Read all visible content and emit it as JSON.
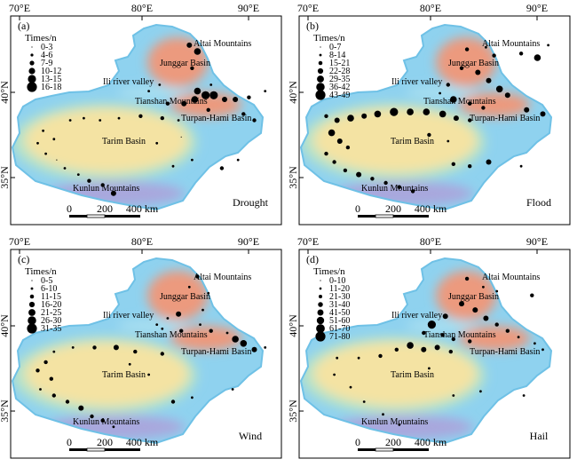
{
  "panels": [
    {
      "id": "a",
      "letter": "(a)",
      "hazard": "Drought",
      "legend_title": "Times/n",
      "legend": [
        "0-3",
        "4-6",
        "7-9",
        "10-12",
        "13-15",
        "16-18"
      ],
      "top_ticks": [
        "70°E",
        "80°E",
        "90°E"
      ],
      "left_ticks": [
        "40°N",
        "35°N"
      ],
      "places": [
        "Altai Mountains",
        "Junggar Basin",
        "Ili river valley",
        "Tianshan Mountains",
        "Turpan-Hami Basin",
        "Tarim Basin",
        "Kunlun Mountains"
      ],
      "scale": {
        "zero": "0",
        "mid": "200",
        "end": "400 km"
      },
      "points": [
        [
          0.66,
          0.14,
          4
        ],
        [
          0.69,
          0.17,
          5
        ],
        [
          0.67,
          0.25,
          3
        ],
        [
          0.74,
          0.33,
          2
        ],
        [
          0.69,
          0.36,
          5
        ],
        [
          0.72,
          0.38,
          6
        ],
        [
          0.75,
          0.38,
          6
        ],
        [
          0.79,
          0.4,
          4
        ],
        [
          0.83,
          0.4,
          4
        ],
        [
          0.88,
          0.39,
          3
        ],
        [
          0.94,
          0.36,
          2
        ],
        [
          0.55,
          0.33,
          2
        ],
        [
          0.51,
          0.36,
          2
        ],
        [
          0.58,
          0.42,
          3
        ],
        [
          0.64,
          0.42,
          4
        ],
        [
          0.68,
          0.4,
          5
        ],
        [
          0.73,
          0.45,
          3
        ],
        [
          0.86,
          0.47,
          3
        ],
        [
          0.9,
          0.5,
          3
        ],
        [
          0.22,
          0.5,
          2
        ],
        [
          0.27,
          0.49,
          2
        ],
        [
          0.33,
          0.5,
          2
        ],
        [
          0.4,
          0.49,
          2
        ],
        [
          0.48,
          0.48,
          3
        ],
        [
          0.56,
          0.49,
          3
        ],
        [
          0.62,
          0.5,
          2
        ],
        [
          0.12,
          0.55,
          2
        ],
        [
          0.16,
          0.59,
          2
        ],
        [
          0.1,
          0.61,
          2
        ],
        [
          0.13,
          0.66,
          2
        ],
        [
          0.17,
          0.69,
          1
        ],
        [
          0.2,
          0.73,
          2
        ],
        [
          0.25,
          0.76,
          2
        ],
        [
          0.29,
          0.79,
          3
        ],
        [
          0.34,
          0.81,
          3
        ],
        [
          0.38,
          0.85,
          4
        ],
        [
          0.6,
          0.72,
          2
        ],
        [
          0.67,
          0.69,
          2
        ],
        [
          0.78,
          0.73,
          3
        ],
        [
          0.84,
          0.69,
          2
        ],
        [
          0.54,
          0.61,
          2
        ],
        [
          0.63,
          0.58,
          1
        ]
      ]
    },
    {
      "id": "b",
      "letter": "(b)",
      "hazard": "Flood",
      "legend_title": "Times/n",
      "legend": [
        "0-7",
        "8-14",
        "15-21",
        "22-28",
        "29-35",
        "36-42",
        "43-49"
      ],
      "top_ticks": [
        "70°E",
        "80°E",
        "90°E"
      ],
      "left_ticks": [
        "40°N",
        "35°N"
      ],
      "places": [
        "Altai Mountains",
        "Junggar Basin",
        "Ili river valley",
        "Tianshan Mountains",
        "Turpan-Hami Basin",
        "Tarim Basin",
        "Kunlun Mountains"
      ],
      "scale": {
        "zero": "0",
        "mid": "200",
        "end": "400 km"
      },
      "points": [
        [
          0.62,
          0.16,
          3
        ],
        [
          0.69,
          0.15,
          2
        ],
        [
          0.72,
          0.19,
          3
        ],
        [
          0.82,
          0.18,
          3
        ],
        [
          0.88,
          0.2,
          5
        ],
        [
          0.92,
          0.14,
          2
        ],
        [
          0.6,
          0.25,
          3
        ],
        [
          0.66,
          0.27,
          4
        ],
        [
          0.7,
          0.31,
          4
        ],
        [
          0.74,
          0.35,
          5
        ],
        [
          0.77,
          0.38,
          4
        ],
        [
          0.55,
          0.33,
          3
        ],
        [
          0.52,
          0.37,
          2
        ],
        [
          0.57,
          0.4,
          5
        ],
        [
          0.63,
          0.42,
          3
        ],
        [
          0.68,
          0.44,
          3
        ],
        [
          0.84,
          0.45,
          4
        ],
        [
          0.9,
          0.47,
          4
        ],
        [
          0.1,
          0.48,
          3
        ],
        [
          0.14,
          0.5,
          4
        ],
        [
          0.19,
          0.49,
          5
        ],
        [
          0.24,
          0.48,
          4
        ],
        [
          0.29,
          0.47,
          5
        ],
        [
          0.35,
          0.46,
          6
        ],
        [
          0.41,
          0.46,
          5
        ],
        [
          0.47,
          0.46,
          5
        ],
        [
          0.53,
          0.47,
          5
        ],
        [
          0.58,
          0.49,
          4
        ],
        [
          0.63,
          0.5,
          3
        ],
        [
          0.12,
          0.56,
          5
        ],
        [
          0.15,
          0.6,
          4
        ],
        [
          0.18,
          0.63,
          3
        ],
        [
          0.1,
          0.66,
          3
        ],
        [
          0.13,
          0.7,
          3
        ],
        [
          0.17,
          0.74,
          3
        ],
        [
          0.22,
          0.76,
          4
        ],
        [
          0.27,
          0.78,
          3
        ],
        [
          0.32,
          0.8,
          3
        ],
        [
          0.37,
          0.82,
          3
        ],
        [
          0.42,
          0.84,
          3
        ],
        [
          0.57,
          0.71,
          3
        ],
        [
          0.63,
          0.72,
          3
        ],
        [
          0.7,
          0.7,
          4
        ],
        [
          0.82,
          0.72,
          2
        ],
        [
          0.48,
          0.57,
          3
        ],
        [
          0.55,
          0.6,
          2
        ]
      ]
    },
    {
      "id": "c",
      "letter": "(c)",
      "hazard": "Wind",
      "legend_title": "Times/n",
      "legend": [
        "0-5",
        "6-10",
        "11-15",
        "16-20",
        "21-25",
        "26-30",
        "31-35"
      ],
      "top_ticks": [
        "70°E",
        "80°E",
        "90°E"
      ],
      "left_ticks": [
        "40°N",
        "35°N"
      ],
      "places": [
        "Altai Mountains",
        "Junggar Basin",
        "Ili river valley",
        "Tianshan Mountains",
        "Turpan-Hami Basin",
        "Tarim Basin",
        "Kunlun Mountains"
      ],
      "scale": {
        "zero": "0",
        "mid": "200",
        "end": "400 km"
      },
      "points": [
        [
          0.66,
          0.18,
          2
        ],
        [
          0.69,
          0.13,
          3
        ],
        [
          0.73,
          0.21,
          2
        ],
        [
          0.71,
          0.29,
          2
        ],
        [
          0.62,
          0.31,
          4
        ],
        [
          0.58,
          0.33,
          2
        ],
        [
          0.54,
          0.36,
          2
        ],
        [
          0.56,
          0.38,
          2
        ],
        [
          0.63,
          0.39,
          3
        ],
        [
          0.7,
          0.36,
          2
        ],
        [
          0.74,
          0.39,
          3
        ],
        [
          0.8,
          0.4,
          2
        ],
        [
          0.83,
          0.43,
          5
        ],
        [
          0.86,
          0.45,
          5
        ],
        [
          0.9,
          0.48,
          4
        ],
        [
          0.94,
          0.47,
          2
        ],
        [
          0.16,
          0.49,
          2
        ],
        [
          0.23,
          0.47,
          2
        ],
        [
          0.31,
          0.47,
          3
        ],
        [
          0.39,
          0.47,
          4
        ],
        [
          0.46,
          0.49,
          3
        ],
        [
          0.56,
          0.5,
          3
        ],
        [
          0.13,
          0.54,
          3
        ],
        [
          0.1,
          0.58,
          3
        ],
        [
          0.15,
          0.62,
          3
        ],
        [
          0.11,
          0.67,
          2
        ],
        [
          0.16,
          0.7,
          3
        ],
        [
          0.21,
          0.73,
          3
        ],
        [
          0.26,
          0.76,
          4
        ],
        [
          0.3,
          0.8,
          3
        ],
        [
          0.34,
          0.82,
          3
        ],
        [
          0.38,
          0.85,
          2
        ],
        [
          0.6,
          0.73,
          3
        ],
        [
          0.67,
          0.71,
          2
        ],
        [
          0.82,
          0.67,
          2
        ],
        [
          0.51,
          0.6,
          2
        ],
        [
          0.44,
          0.55,
          2
        ]
      ]
    },
    {
      "id": "d",
      "letter": "(d)",
      "hazard": "Hail",
      "legend_title": "Times/n",
      "legend": [
        "0-10",
        "11-20",
        "21-30",
        "31-40",
        "41-50",
        "51-60",
        "61-70",
        "71-80"
      ],
      "top_ticks": [
        "70°E",
        "80°E",
        "90°E"
      ],
      "left_ticks": [
        "40°N",
        "35°N"
      ],
      "places": [
        "Altai Mountains",
        "Junggar Basin",
        "Ili river valley",
        "Tianshan Mountains",
        "Turpan-Hami Basin",
        "Tarim Basin",
        "Kunlun Mountains"
      ],
      "scale": {
        "zero": "0",
        "mid": "200",
        "end": "400 km"
      },
      "points": [
        [
          0.62,
          0.14,
          3
        ],
        [
          0.68,
          0.18,
          2
        ],
        [
          0.73,
          0.2,
          2
        ],
        [
          0.86,
          0.22,
          3
        ],
        [
          0.6,
          0.26,
          4
        ],
        [
          0.65,
          0.29,
          4
        ],
        [
          0.69,
          0.33,
          4
        ],
        [
          0.73,
          0.36,
          3
        ],
        [
          0.77,
          0.39,
          3
        ],
        [
          0.54,
          0.32,
          4
        ],
        [
          0.49,
          0.36,
          6
        ],
        [
          0.46,
          0.4,
          3
        ],
        [
          0.53,
          0.41,
          3
        ],
        [
          0.57,
          0.43,
          3
        ],
        [
          0.63,
          0.44,
          3
        ],
        [
          0.81,
          0.42,
          2
        ],
        [
          0.87,
          0.45,
          2
        ],
        [
          0.9,
          0.48,
          2
        ],
        [
          0.36,
          0.48,
          3
        ],
        [
          0.41,
          0.46,
          5
        ],
        [
          0.46,
          0.48,
          4
        ],
        [
          0.51,
          0.47,
          4
        ],
        [
          0.56,
          0.49,
          3
        ],
        [
          0.14,
          0.52,
          2
        ],
        [
          0.22,
          0.52,
          2
        ],
        [
          0.3,
          0.51,
          3
        ],
        [
          0.13,
          0.6,
          2
        ],
        [
          0.19,
          0.66,
          2
        ],
        [
          0.24,
          0.73,
          2
        ],
        [
          0.31,
          0.79,
          2
        ],
        [
          0.37,
          0.84,
          2
        ],
        [
          0.57,
          0.7,
          2
        ],
        [
          0.67,
          0.68,
          2
        ],
        [
          0.83,
          0.7,
          2
        ],
        [
          0.48,
          0.57,
          2
        ]
      ]
    }
  ],
  "colors": {
    "point": "#000000",
    "tarim": "#f4e3a3",
    "basin_red": "#ec9a7e",
    "mountain_blue": "#8fd2ef",
    "kunlun": "#a9a7dd",
    "frame": "#000000"
  }
}
